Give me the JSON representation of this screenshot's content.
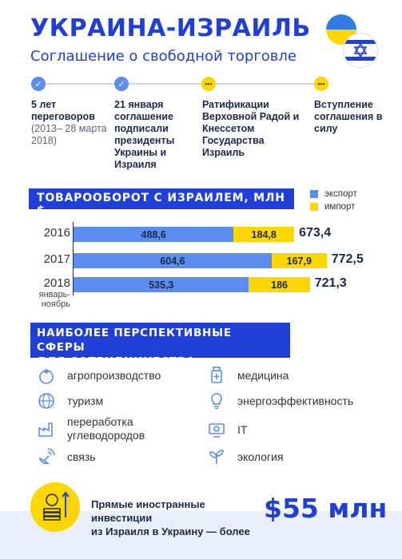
{
  "header": {
    "title": "УКРАИНА-ИЗРАИЛЬ",
    "subtitle": "Соглашение о свободной торговле"
  },
  "timeline": [
    {
      "title": "5 лет переговоров",
      "sub": "(2013– 28 марта 2018)",
      "status": "done"
    },
    {
      "title": "21 января соглашение подписали президенты Украины и Израиля",
      "sub": "",
      "status": "done"
    },
    {
      "title": "Ратификации Верховной Радой и Кнессетом Государства Израиль",
      "sub": "",
      "status": "pending"
    },
    {
      "title": "Вступление соглашения в силу",
      "sub": "",
      "status": "pending"
    }
  ],
  "trade": {
    "heading": "ТОВАРООБОРОТ С ИЗРАИЛЕМ, МЛН $",
    "legend_export": "экспорт",
    "legend_import": "импорт",
    "colors": {
      "export": "#5b8def",
      "import": "#ffd600"
    }
  },
  "chart_data": {
    "type": "bar",
    "stacked": true,
    "orientation": "horizontal",
    "title": "ТОВАРООБОРОТ С ИЗРАИЛЕМ, МЛН $",
    "categories": [
      "2016",
      "2017",
      "2018"
    ],
    "category_notes": [
      "",
      "",
      "январь-ноябрь"
    ],
    "series": [
      {
        "name": "экспорт",
        "values": [
          488.6,
          604.6,
          535.3
        ]
      },
      {
        "name": "импорт",
        "values": [
          184.8,
          167.9,
          186
        ]
      }
    ],
    "value_labels": {
      "export": [
        "488,6",
        "604,6",
        "535,3"
      ],
      "import": [
        "184,8",
        "167,9",
        "186"
      ]
    },
    "totals": [
      "673,4",
      "772,5",
      "721,3"
    ]
  },
  "sectors": {
    "heading_line1": "НАИБОЛЕЕ ПЕРСПЕКТИВНЫЕ СФЕРЫ",
    "heading_line2": "ДЛЯ СОТРУДНИЧЕСТВА:",
    "items": [
      {
        "label": "агропроизводство",
        "icon": "tomato-icon"
      },
      {
        "label": "медицина",
        "icon": "medicine-icon"
      },
      {
        "label": "туризм",
        "icon": "globe-plane-icon"
      },
      {
        "label": "энергоэффективность",
        "icon": "lightbulb-icon"
      },
      {
        "label_1": "переработка",
        "label_2": "углеводородов",
        "icon": "factory-icon"
      },
      {
        "label": "IT",
        "icon": "gear-computer-icon"
      },
      {
        "label": "связь",
        "icon": "satellite-icon"
      },
      {
        "label": "экология",
        "icon": "sprout-icon"
      }
    ]
  },
  "investment": {
    "text_1": "Прямые иностранные инвестиции",
    "text_2": "из Израиля в Украину — более",
    "value": "$55 млн"
  }
}
